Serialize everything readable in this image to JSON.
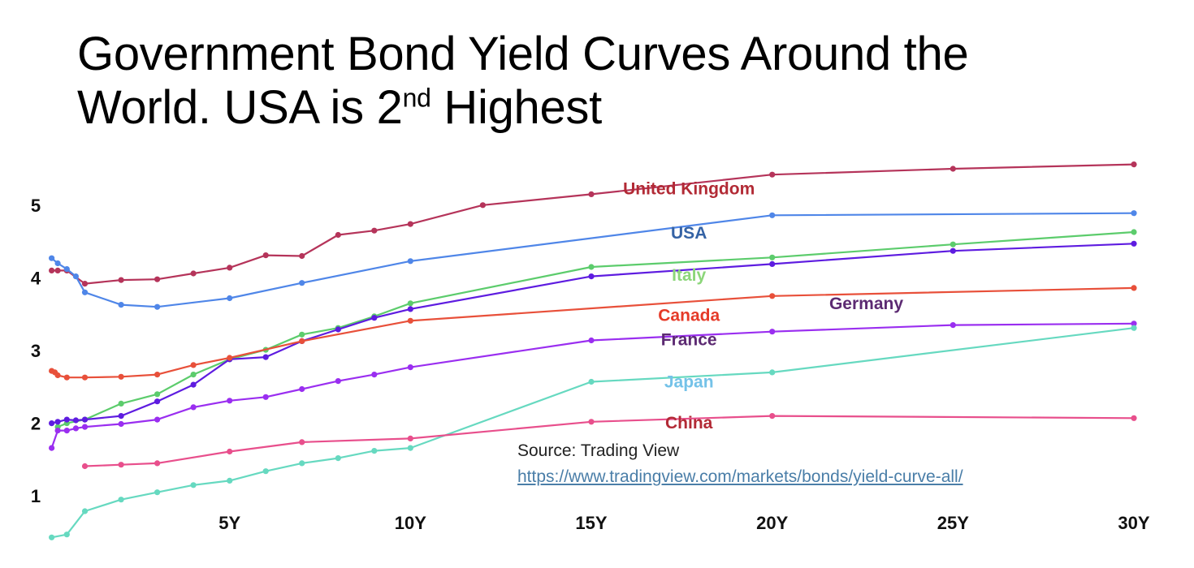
{
  "title": {
    "line1": "Government Bond Yield Curves Around the",
    "line2_main": "World. USA is 2",
    "line2_sup": "nd",
    "line2_end": " Highest"
  },
  "source": {
    "label": "Source: Trading View",
    "url": "https://www.tradingview.com/markets/bonds/yield-curve-all/"
  },
  "chart_data": {
    "type": "line",
    "title": "Government Bond Yield Curves Around the World. USA is 2nd Highest",
    "xlabel": "",
    "ylabel": "",
    "xlim": [
      0,
      30
    ],
    "ylim": [
      0.5,
      5.5
    ],
    "x_ticks": [
      {
        "value": 5,
        "label": "5Y"
      },
      {
        "value": 10,
        "label": "10Y"
      },
      {
        "value": 15,
        "label": "15Y"
      },
      {
        "value": 20,
        "label": "20Y"
      },
      {
        "value": 25,
        "label": "25Y"
      },
      {
        "value": 30,
        "label": "30Y"
      }
    ],
    "y_ticks": [
      {
        "value": 1,
        "label": "1"
      },
      {
        "value": 2,
        "label": "2"
      },
      {
        "value": 3,
        "label": "3"
      },
      {
        "value": 4,
        "label": "4"
      },
      {
        "value": 5,
        "label": "5"
      }
    ],
    "grid": false,
    "legend": "inline labels",
    "series": [
      {
        "name": "United Kingdom",
        "color": "#b5345a",
        "label_color": "#b22a35",
        "label_anchor": [
          17.7,
          5.15
        ],
        "points": [
          [
            0.08,
            4.1
          ],
          [
            0.25,
            4.1
          ],
          [
            0.5,
            4.1
          ],
          [
            1,
            3.92
          ],
          [
            2,
            3.97
          ],
          [
            3,
            3.98
          ],
          [
            4,
            4.06
          ],
          [
            5,
            4.14
          ],
          [
            6,
            4.31
          ],
          [
            7,
            4.3
          ],
          [
            8,
            4.59
          ],
          [
            9,
            4.65
          ],
          [
            10,
            4.74
          ],
          [
            12,
            5.0
          ],
          [
            15,
            5.15
          ],
          [
            20,
            5.42
          ],
          [
            25,
            5.5
          ],
          [
            30,
            5.56
          ]
        ]
      },
      {
        "name": "USA",
        "color": "#4f86e8",
        "label_color": "#3563a5",
        "label_anchor": [
          17.7,
          4.54
        ],
        "points": [
          [
            0.08,
            4.27
          ],
          [
            0.25,
            4.2
          ],
          [
            0.5,
            4.12
          ],
          [
            0.75,
            4.02
          ],
          [
            1,
            3.8
          ],
          [
            2,
            3.63
          ],
          [
            3,
            3.6
          ],
          [
            5,
            3.72
          ],
          [
            7,
            3.93
          ],
          [
            10,
            4.23
          ],
          [
            20,
            4.86
          ],
          [
            30,
            4.89
          ]
        ]
      },
      {
        "name": "Italy",
        "color": "#5ccc6c",
        "label_color": "#8cd67a",
        "label_anchor": [
          17.7,
          3.96
        ],
        "points": [
          [
            0.25,
            1.95
          ],
          [
            0.5,
            2.0
          ],
          [
            1,
            2.05
          ],
          [
            2,
            2.27
          ],
          [
            3,
            2.4
          ],
          [
            4,
            2.67
          ],
          [
            5,
            2.88
          ],
          [
            6,
            3.01
          ],
          [
            7,
            3.22
          ],
          [
            8,
            3.31
          ],
          [
            9,
            3.47
          ],
          [
            10,
            3.65
          ],
          [
            15,
            4.15
          ],
          [
            20,
            4.28
          ],
          [
            25,
            4.46
          ],
          [
            30,
            4.63
          ]
        ]
      },
      {
        "name": "Germany",
        "color": "#5e1ce0",
        "label_color": "#5c2a72",
        "label_anchor": [
          22.6,
          3.57
        ],
        "points": [
          [
            0.08,
            2.0
          ],
          [
            0.25,
            2.02
          ],
          [
            0.5,
            2.05
          ],
          [
            0.75,
            2.04
          ],
          [
            1,
            2.05
          ],
          [
            2,
            2.1
          ],
          [
            3,
            2.3
          ],
          [
            4,
            2.53
          ],
          [
            5,
            2.88
          ],
          [
            6,
            2.91
          ],
          [
            7,
            3.13
          ],
          [
            8,
            3.29
          ],
          [
            9,
            3.45
          ],
          [
            10,
            3.57
          ],
          [
            15,
            4.02
          ],
          [
            20,
            4.19
          ],
          [
            25,
            4.37
          ],
          [
            30,
            4.47
          ]
        ]
      },
      {
        "name": "Canada",
        "color": "#e8503a",
        "label_color": "#e53a28",
        "label_anchor": [
          17.7,
          3.41
        ],
        "points": [
          [
            0.08,
            2.72
          ],
          [
            0.17,
            2.7
          ],
          [
            0.25,
            2.66
          ],
          [
            0.5,
            2.63
          ],
          [
            1,
            2.63
          ],
          [
            2,
            2.64
          ],
          [
            3,
            2.67
          ],
          [
            4,
            2.8
          ],
          [
            5,
            2.9
          ],
          [
            7,
            3.13
          ],
          [
            10,
            3.41
          ],
          [
            20,
            3.75
          ],
          [
            30,
            3.86
          ]
        ]
      },
      {
        "name": "France",
        "color": "#9a2ef0",
        "label_color": "#5c2a72",
        "label_anchor": [
          17.7,
          3.07
        ],
        "points": [
          [
            0.08,
            1.66
          ],
          [
            0.25,
            1.9
          ],
          [
            0.5,
            1.9
          ],
          [
            0.75,
            1.93
          ],
          [
            1,
            1.95
          ],
          [
            2,
            1.99
          ],
          [
            3,
            2.05
          ],
          [
            4,
            2.22
          ],
          [
            5,
            2.31
          ],
          [
            6,
            2.36
          ],
          [
            7,
            2.47
          ],
          [
            8,
            2.58
          ],
          [
            9,
            2.67
          ],
          [
            10,
            2.77
          ],
          [
            15,
            3.14
          ],
          [
            20,
            3.26
          ],
          [
            25,
            3.35
          ],
          [
            30,
            3.37
          ]
        ]
      },
      {
        "name": "Japan",
        "color": "#66d9c0",
        "label_color": "#74c2e8",
        "label_anchor": [
          17.7,
          2.49
        ],
        "points": [
          [
            0.08,
            0.43
          ],
          [
            0.5,
            0.47
          ],
          [
            1,
            0.79
          ],
          [
            2,
            0.95
          ],
          [
            3,
            1.05
          ],
          [
            4,
            1.15
          ],
          [
            5,
            1.21
          ],
          [
            6,
            1.34
          ],
          [
            7,
            1.45
          ],
          [
            8,
            1.52
          ],
          [
            9,
            1.62
          ],
          [
            10,
            1.66
          ],
          [
            15,
            2.57
          ],
          [
            20,
            2.7
          ],
          [
            30,
            3.31
          ]
        ]
      },
      {
        "name": "China",
        "color": "#e84f8c",
        "label_color": "#b22a35",
        "label_anchor": [
          17.7,
          1.93
        ],
        "points": [
          [
            1,
            1.41
          ],
          [
            2,
            1.43
          ],
          [
            3,
            1.45
          ],
          [
            5,
            1.61
          ],
          [
            7,
            1.74
          ],
          [
            10,
            1.79
          ],
          [
            15,
            2.02
          ],
          [
            20,
            2.1
          ],
          [
            30,
            2.07
          ]
        ]
      }
    ]
  }
}
